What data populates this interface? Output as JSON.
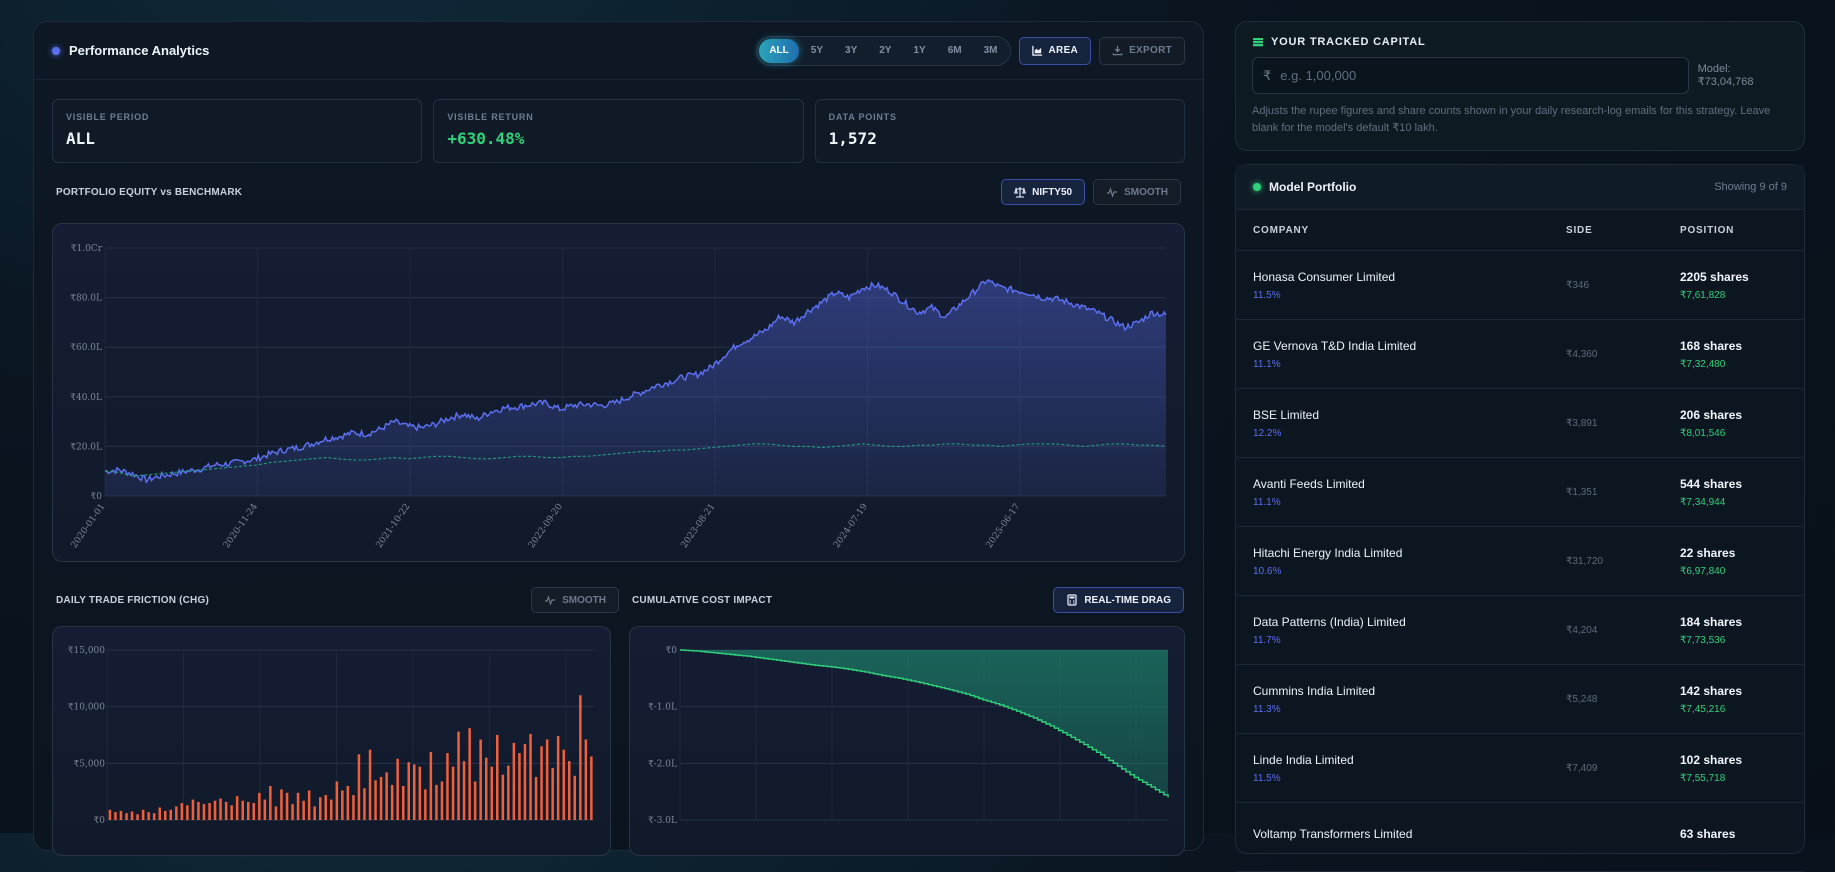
{
  "header": {
    "title": "Performance Analytics",
    "ranges": [
      "ALL",
      "5Y",
      "3Y",
      "2Y",
      "1Y",
      "6M",
      "3M"
    ],
    "active_range": "ALL",
    "area_label": "AREA",
    "export_label": "EXPORT"
  },
  "stats": [
    {
      "label": "VISIBLE PERIOD",
      "value": "ALL"
    },
    {
      "label": "VISIBLE RETURN",
      "value": "+630.48%"
    },
    {
      "label": "DATA POINTS",
      "value": "1,572"
    }
  ],
  "equity_section": {
    "title": "PORTFOLIO EQUITY vs BENCHMARK",
    "benchmark_label": "NIFTY50",
    "smooth_label": "SMOOTH"
  },
  "friction_section": {
    "title": "DAILY TRADE FRICTION (CHG)",
    "smooth_label": "SMOOTH"
  },
  "cost_section": {
    "title": "CUMULATIVE COST IMPACT",
    "drag_label": "REAL-TIME DRAG"
  },
  "colors": {
    "accent": "#5b6ff0",
    "positive": "#2fd17a",
    "benchmark": "#1f9e7a",
    "friction": "#f0603a"
  },
  "chart_data": [
    {
      "type": "area",
      "title": "",
      "x_ticks": [
        "2020-01-01",
        "2020-11-24",
        "2021-10-22",
        "2022-09-20",
        "2023-08-21",
        "2024-07-19",
        "2025-06-17"
      ],
      "y_ticks": [
        "₹0",
        "₹20.0L",
        "₹40.0L",
        "₹60.0L",
        "₹80.0L",
        "₹1.0Cr"
      ],
      "ylim": [
        0,
        100
      ],
      "series": [
        {
          "name": "",
          "values": [
            10,
            10.5,
            9,
            6.5,
            8,
            9,
            10,
            11,
            12.5,
            13,
            14,
            15,
            17,
            18.5,
            19.5,
            21,
            23,
            24,
            25.5,
            25,
            27,
            30,
            28,
            27.5,
            29,
            31.5,
            33,
            31,
            34,
            35.5,
            36,
            37,
            37.5,
            35,
            36.5,
            37,
            36.5,
            37.5,
            40,
            42,
            44.5,
            46,
            48,
            49,
            52,
            57,
            61.5,
            64,
            67,
            72.5,
            70,
            74.5,
            78,
            82,
            80,
            84,
            85,
            82.5,
            78,
            74,
            76,
            72,
            77,
            82,
            87,
            84,
            83,
            82,
            80,
            79.5,
            78,
            76,
            74,
            71,
            68,
            70,
            74,
            73
          ]
        },
        {
          "name": "NIFTY50",
          "values": [
            10,
            9.5,
            8,
            8.5,
            9,
            9.5,
            10,
            10.5,
            11,
            11.5,
            12,
            12.5,
            13.5,
            14,
            14.5,
            15,
            15.5,
            15,
            14.5,
            14.5,
            15,
            15.5,
            15,
            15.5,
            16,
            16,
            15.5,
            15,
            15,
            15.5,
            16,
            16,
            15.5,
            15.5,
            16,
            16,
            16.5,
            17,
            17.5,
            18,
            18,
            18.5,
            18.5,
            19,
            19.5,
            20,
            20.5,
            21,
            21,
            20.5,
            20,
            20,
            19.5,
            20,
            20.5,
            21,
            20.5,
            20,
            20,
            20.5,
            20.5,
            21,
            21,
            20.5,
            20.5,
            20,
            20.5,
            21,
            21,
            21,
            20.5,
            20,
            20.5,
            21,
            21,
            20.5,
            20.5,
            20
          ]
        }
      ]
    },
    {
      "type": "bar",
      "title": "",
      "y_ticks": [
        "₹0",
        "₹5,000",
        "₹10,000",
        "₹15,000"
      ],
      "ylim": [
        0,
        15000
      ],
      "series": [
        {
          "name": "",
          "values": [
            900,
            700,
            800,
            600,
            750,
            500,
            900,
            700,
            600,
            1100,
            800,
            900,
            1200,
            1500,
            1300,
            1800,
            1600,
            1400,
            1500,
            1700,
            1900,
            1600,
            1300,
            2100,
            1700,
            1600,
            1500,
            2400,
            1800,
            3000,
            1200,
            2700,
            2400,
            1400,
            2400,
            1700,
            2600,
            1200,
            2000,
            2200,
            1800,
            3400,
            2600,
            3000,
            2200,
            5800,
            2800,
            6200,
            3500,
            3800,
            4200,
            3100,
            5400,
            3000,
            5100,
            4900,
            4700,
            2700,
            6000,
            3100,
            3400,
            5900,
            4700,
            7800,
            5200,
            8100,
            3400,
            7100,
            5500,
            4700,
            7500,
            4000,
            4800,
            6800,
            5900,
            6700,
            7600,
            3800,
            6500,
            7100,
            4600,
            7400,
            6200,
            5200,
            3900,
            11000,
            7100,
            5600
          ]
        }
      ]
    },
    {
      "type": "area",
      "title": "",
      "y_ticks": [
        "₹0",
        "₹-1.0L",
        "₹-2.0L",
        "₹-3.0L"
      ],
      "ylim": [
        -3,
        0
      ],
      "series": [
        {
          "name": "",
          "values": [
            0,
            -0.02,
            -0.05,
            -0.08,
            -0.11,
            -0.15,
            -0.19,
            -0.23,
            -0.27,
            -0.3,
            -0.34,
            -0.39,
            -0.45,
            -0.5,
            -0.56,
            -0.63,
            -0.7,
            -0.78,
            -0.88,
            -0.97,
            -1.08,
            -1.2,
            -1.34,
            -1.5,
            -1.67,
            -1.85,
            -2.05,
            -2.25,
            -2.42,
            -2.6
          ]
        }
      ]
    }
  ],
  "capital": {
    "title": "YOUR TRACKED CAPITAL",
    "rupee": "₹",
    "placeholder": "e.g. 1,00,000",
    "model_label": "Model: ₹73,04,768",
    "help": "Adjusts the rupee figures and share counts shown in your daily research-log emails for this strategy. Leave blank for the model's default ₹10 lakh."
  },
  "portfolio": {
    "title": "Model Portfolio",
    "count": "Showing 9 of 9",
    "columns": [
      "COMPANY",
      "SIDE",
      "POSITION"
    ],
    "rows": [
      {
        "company": "Honasa Consumer Limited",
        "weight": "11.5%",
        "side": "₹346",
        "shares": "2205 shares",
        "value": "₹7,61,828"
      },
      {
        "company": "GE Vernova T&D India Limited",
        "weight": "11.1%",
        "side": "₹4,360",
        "shares": "168 shares",
        "value": "₹7,32,480"
      },
      {
        "company": "BSE Limited",
        "weight": "12.2%",
        "side": "₹3,891",
        "shares": "206 shares",
        "value": "₹8,01,546"
      },
      {
        "company": "Avanti Feeds Limited",
        "weight": "11.1%",
        "side": "₹1,351",
        "shares": "544 shares",
        "value": "₹7,34,944"
      },
      {
        "company": "Hitachi Energy India Limited",
        "weight": "10.6%",
        "side": "₹31,720",
        "shares": "22 shares",
        "value": "₹6,97,840"
      },
      {
        "company": "Data Patterns (India) Limited",
        "weight": "11.7%",
        "side": "₹4,204",
        "shares": "184 shares",
        "value": "₹7,73,536"
      },
      {
        "company": "Cummins India Limited",
        "weight": "11.3%",
        "side": "₹5,248",
        "shares": "142 shares",
        "value": "₹7,45,216"
      },
      {
        "company": "Linde India Limited",
        "weight": "11.5%",
        "side": "₹7,409",
        "shares": "102 shares",
        "value": "₹7,55,718"
      },
      {
        "company": "Voltamp Transformers Limited",
        "weight": "",
        "side": "",
        "shares": "63 shares",
        "value": ""
      }
    ]
  }
}
